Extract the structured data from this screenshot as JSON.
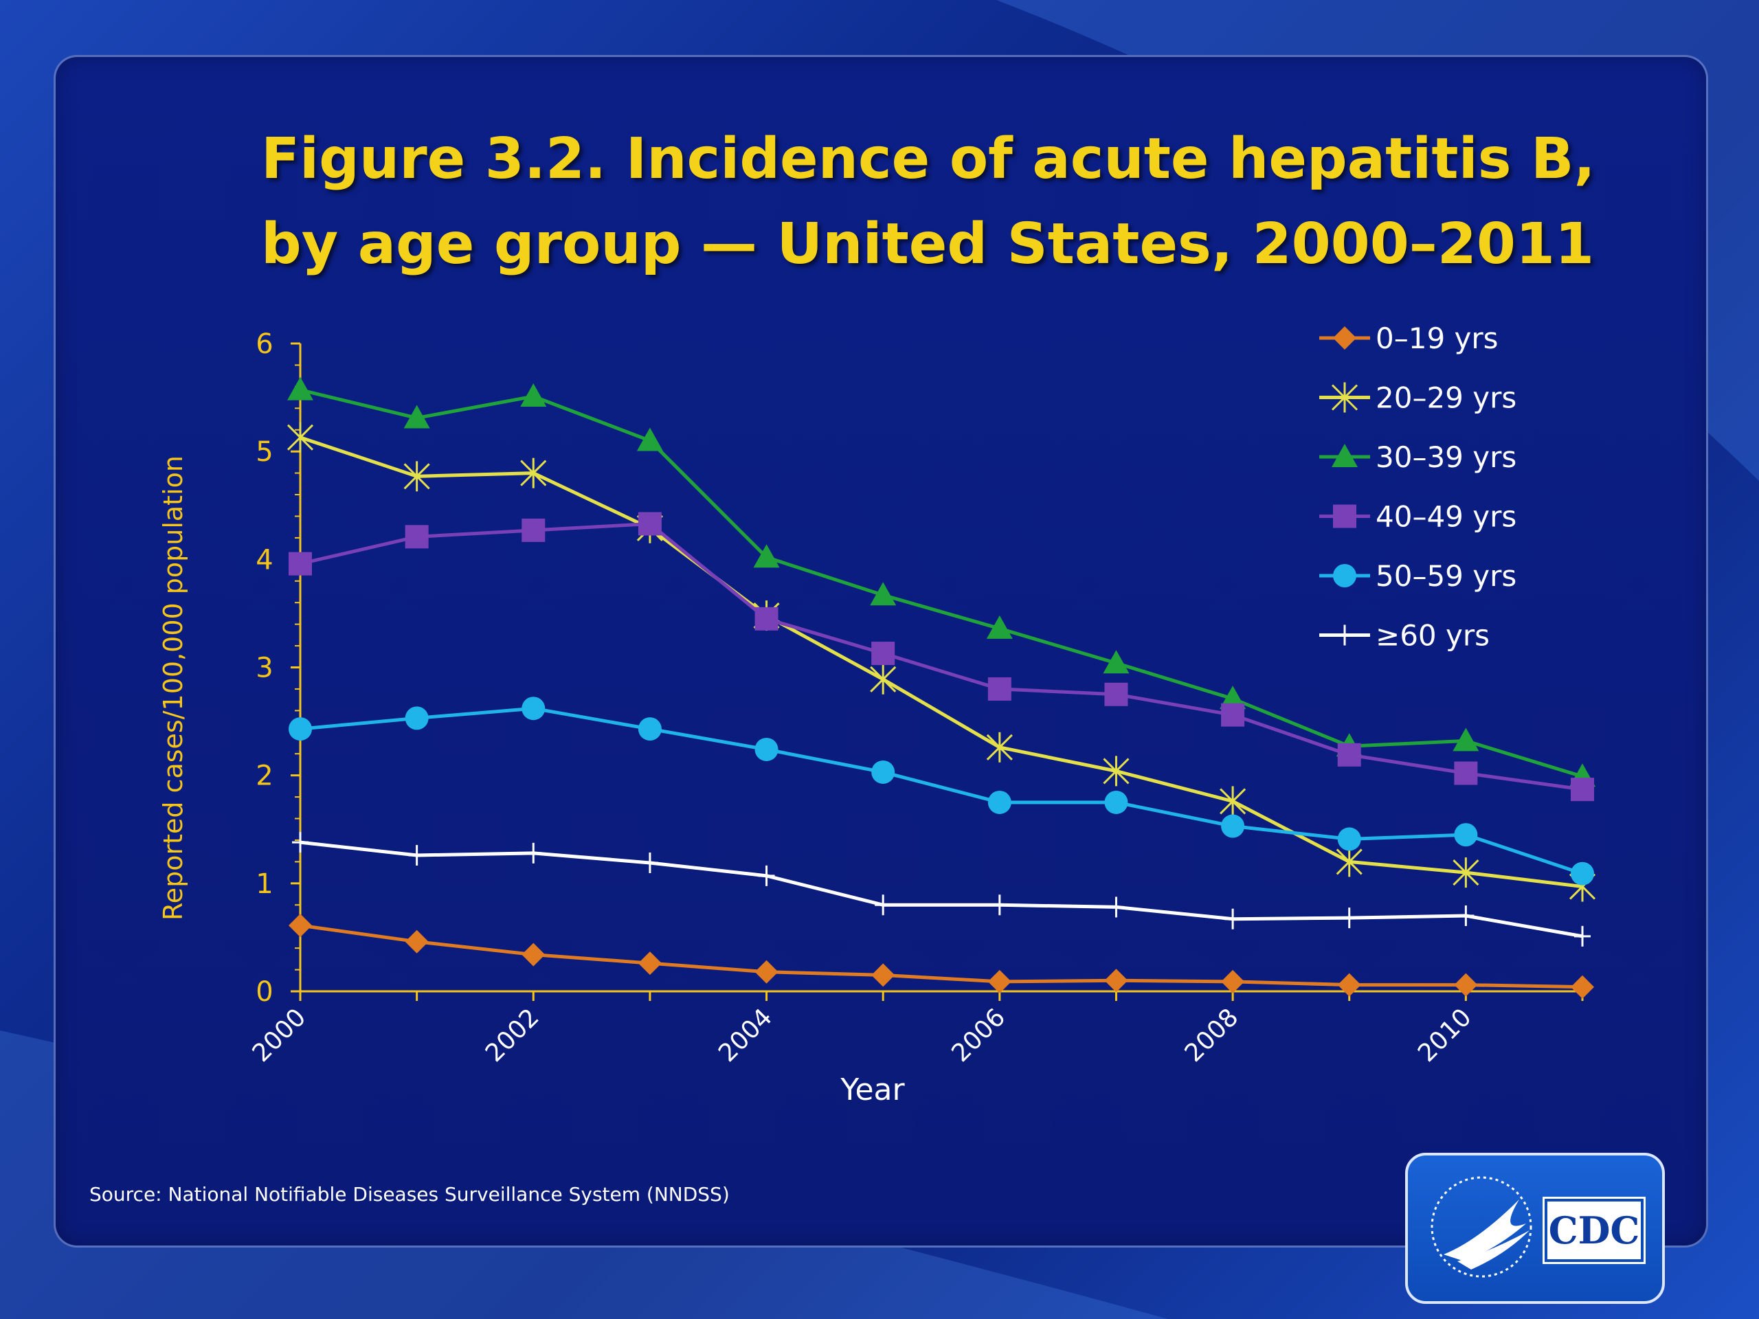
{
  "title_line1": "Figure 3.2. Incidence of acute hepatitis B,",
  "title_line2": "by age group — United States, 2000–2011",
  "source": "Source: National Notifiable Diseases Surveillance System (NNDSS)",
  "logo": {
    "text": "CDC"
  },
  "colors": {
    "title": "#f5d21a",
    "axis": "#f5c518",
    "background": "#0a1a78"
  },
  "chart_data": {
    "type": "line",
    "xlabel": "Year",
    "ylabel": "Reported cases/100,000 population",
    "x": [
      2000,
      2001,
      2002,
      2003,
      2004,
      2005,
      2006,
      2007,
      2008,
      2009,
      2010,
      2011
    ],
    "xticks": [
      "2000",
      "2002",
      "2004",
      "2006",
      "2008",
      "2010"
    ],
    "yticks": [
      "0",
      "1",
      "2",
      "3",
      "4",
      "5",
      "6"
    ],
    "ylim": [
      0,
      6
    ],
    "grid": false,
    "legend_position": "top-right",
    "series": [
      {
        "name": "0–19 yrs",
        "marker": "diamond",
        "color": "#e07b22",
        "values": [
          0.61,
          0.46,
          0.34,
          0.26,
          0.18,
          0.15,
          0.09,
          0.1,
          0.09,
          0.06,
          0.06,
          0.04
        ]
      },
      {
        "name": "20–29 yrs",
        "marker": "star",
        "color": "#e4e04a",
        "values": [
          5.13,
          4.77,
          4.8,
          4.29,
          3.48,
          2.89,
          2.26,
          2.04,
          1.76,
          1.2,
          1.1,
          0.97
        ]
      },
      {
        "name": "30–39 yrs",
        "marker": "triangle",
        "color": "#1fa33a",
        "values": [
          5.57,
          5.31,
          5.51,
          5.1,
          4.02,
          3.67,
          3.36,
          3.04,
          2.71,
          2.27,
          2.32,
          1.99
        ]
      },
      {
        "name": "40–49 yrs",
        "marker": "square",
        "color": "#7a40b8",
        "values": [
          3.96,
          4.21,
          4.27,
          4.33,
          3.45,
          3.13,
          2.8,
          2.75,
          2.56,
          2.19,
          2.02,
          1.87
        ]
      },
      {
        "name": "50–59 yrs",
        "marker": "circle",
        "color": "#1fb5ea",
        "values": [
          2.43,
          2.53,
          2.62,
          2.43,
          2.24,
          2.03,
          1.75,
          1.75,
          1.53,
          1.41,
          1.45,
          1.09
        ]
      },
      {
        "name": "≥60 yrs",
        "marker": "plus",
        "color": "#ffffff",
        "values": [
          1.38,
          1.26,
          1.28,
          1.19,
          1.07,
          0.8,
          0.8,
          0.78,
          0.67,
          0.68,
          0.7,
          0.51
        ]
      }
    ]
  }
}
